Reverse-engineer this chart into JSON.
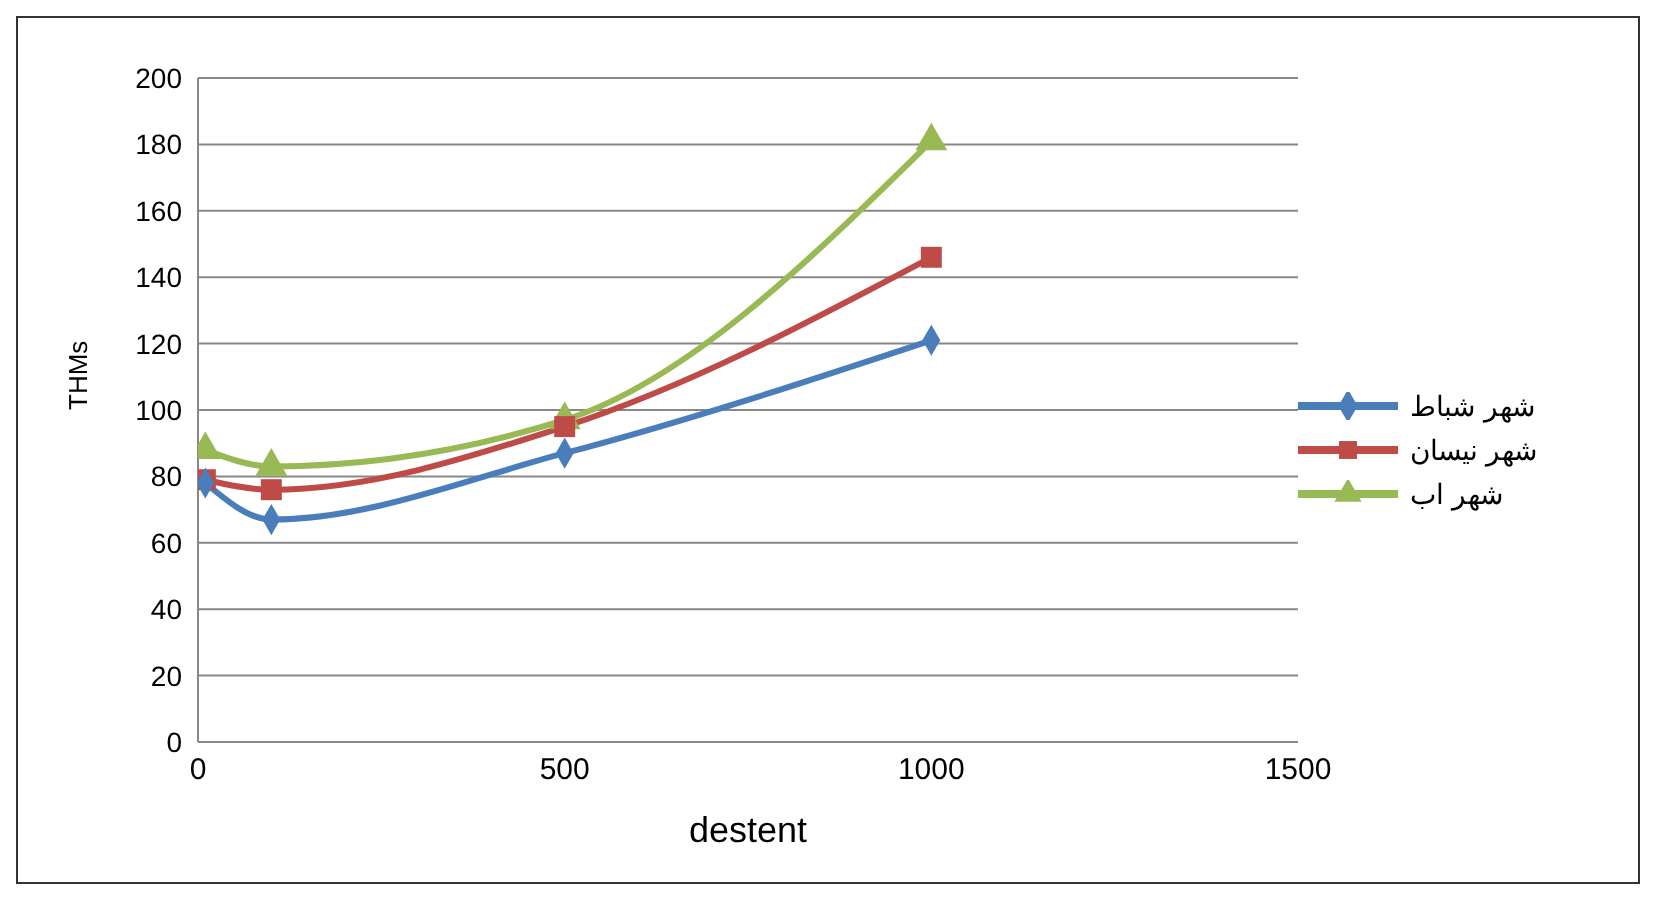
{
  "chart_data": {
    "type": "line",
    "xlabel": "destent",
    "ylabel": "THMs",
    "x": [
      10,
      100,
      500,
      1000
    ],
    "series": [
      {
        "name": "شهر شباط",
        "color": "#4a7ebb",
        "marker": "diamond",
        "values": [
          78,
          67,
          87,
          121
        ]
      },
      {
        "name": "شهر نيسان",
        "color": "#be4b48",
        "marker": "square",
        "values": [
          79,
          76,
          95,
          146
        ]
      },
      {
        "name": "شهر اب",
        "color": "#98b954",
        "marker": "triangle",
        "values": [
          88,
          83,
          97,
          181
        ]
      }
    ],
    "xlim": [
      0,
      1500
    ],
    "xticks": [
      0,
      500,
      1000,
      1500
    ],
    "ylim": [
      0,
      200
    ],
    "yticks": [
      0,
      20,
      40,
      60,
      80,
      100,
      120,
      140,
      160,
      180,
      200
    ],
    "grid": "y",
    "legend": "right"
  }
}
